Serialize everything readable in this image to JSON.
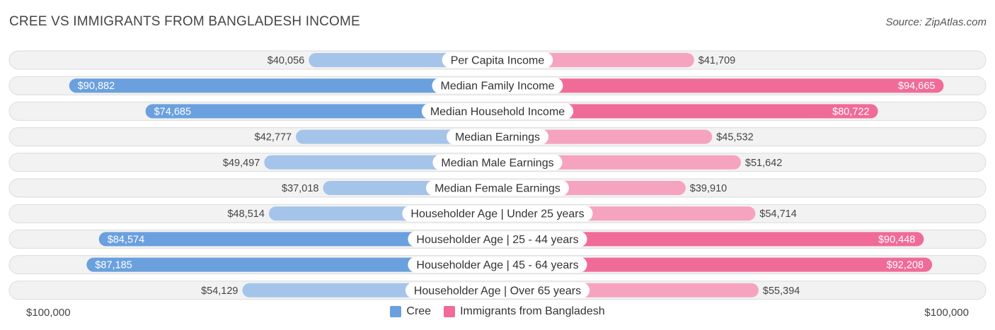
{
  "header": {
    "title": "CREE VS IMMIGRANTS FROM BANGLADESH INCOME",
    "source": "Source: ZipAtlas.com"
  },
  "colors": {
    "cree_light": "#a5c4ea",
    "cree_dark": "#6aa0de",
    "bangladesh_light": "#f5a3bf",
    "bangladesh_dark": "#f06b97",
    "row_bg": "#f2f2f2",
    "row_border": "#dcdcdc"
  },
  "axis": {
    "left_label": "$100,000",
    "right_label": "$100,000"
  },
  "legend": {
    "cree": "Cree",
    "bangladesh": "Immigrants from Bangladesh"
  },
  "chart_data": {
    "type": "bar",
    "orientation": "diverging-horizontal",
    "xlim": [
      0,
      100000
    ],
    "categories": [
      "Per Capita Income",
      "Median Family Income",
      "Median Household Income",
      "Median Earnings",
      "Median Male Earnings",
      "Median Female Earnings",
      "Householder Age | Under 25 years",
      "Householder Age | 25 - 44 years",
      "Householder Age | 45 - 64 years",
      "Householder Age | Over 65 years"
    ],
    "series": [
      {
        "name": "Cree",
        "side": "left",
        "values": [
          40056,
          90882,
          74685,
          42777,
          49497,
          37018,
          48514,
          84574,
          87185,
          54129
        ],
        "labels": [
          "$40,056",
          "$90,882",
          "$74,685",
          "$42,777",
          "$49,497",
          "$37,018",
          "$48,514",
          "$84,574",
          "$87,185",
          "$54,129"
        ]
      },
      {
        "name": "Immigrants from Bangladesh",
        "side": "right",
        "values": [
          41709,
          94665,
          80722,
          45532,
          51642,
          39910,
          54714,
          90448,
          92208,
          55394
        ],
        "labels": [
          "$41,709",
          "$94,665",
          "$80,722",
          "$45,532",
          "$51,642",
          "$39,910",
          "$54,714",
          "$90,448",
          "$92,208",
          "$55,394"
        ]
      }
    ],
    "legend_position": "bottom-center"
  }
}
